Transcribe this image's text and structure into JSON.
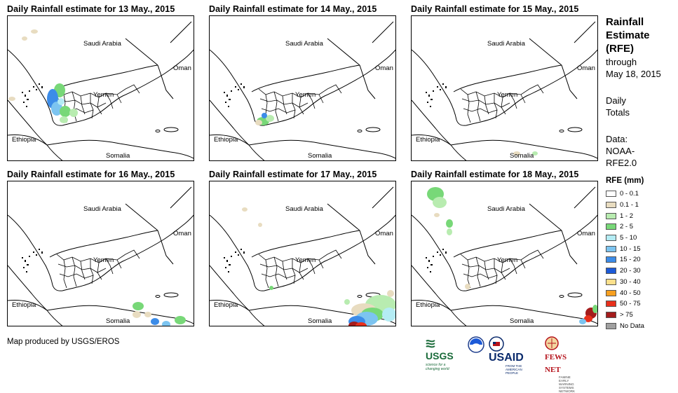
{
  "panels": [
    {
      "title": "Daily Rainfall estimate for 13 May., 2015"
    },
    {
      "title": "Daily Rainfall estimate for 14 May., 2015"
    },
    {
      "title": "Daily Rainfall estimate for 15 May., 2015"
    },
    {
      "title": "Daily Rainfall estimate for 16 May., 2015"
    },
    {
      "title": "Daily Rainfall estimate for 17 May., 2015"
    },
    {
      "title": "Daily Rainfall estimate for 18 May., 2015"
    }
  ],
  "map_labels": {
    "saudi": "Saudi Arabia",
    "oman": "Oman",
    "yemen": "Yemen",
    "ethiopia": "Ethiopia",
    "somalia": "Somalia"
  },
  "side": {
    "title_line1": "Rainfall",
    "title_line2": "Estimate",
    "title_line3": "(RFE)",
    "through": "through",
    "date": "May 18, 2015",
    "daily": "Daily",
    "totals": "Totals",
    "data_label": "Data:",
    "data_src1": "NOAA-",
    "data_src2": "RFE2.0"
  },
  "legend": {
    "title": "RFE (mm)",
    "items": [
      {
        "label": "0 - 0.1",
        "color": "#ffffff"
      },
      {
        "label": "0.1 - 1",
        "color": "#e8dcc0"
      },
      {
        "label": "1 - 2",
        "color": "#b8ecb0"
      },
      {
        "label": "2 - 5",
        "color": "#78d878"
      },
      {
        "label": "5 - 10",
        "color": "#b4ecf4"
      },
      {
        "label": "10 - 15",
        "color": "#7cc4f0"
      },
      {
        "label": "15 - 20",
        "color": "#3c8ce8"
      },
      {
        "label": "20 - 30",
        "color": "#1c5ad8"
      },
      {
        "label": "30 - 40",
        "color": "#fce08c"
      },
      {
        "label": "40 - 50",
        "color": "#f8a020"
      },
      {
        "label": "50 - 75",
        "color": "#e8301c"
      },
      {
        "label": "> 75",
        "color": "#a41c1c"
      },
      {
        "label": "No Data",
        "color": "#a0a0a0"
      }
    ]
  },
  "credit": "Map produced by USGS/EROS",
  "logos": {
    "usgs": "USGS",
    "usgs_tag": "science for a changing world",
    "usaid": "USAID",
    "usaid_tag": "FROM THE AMERICAN PEOPLE",
    "fews": "FEWS NET",
    "fews_tag": "FAMINE EARLY WARNING SYSTEMS NETWORK"
  }
}
